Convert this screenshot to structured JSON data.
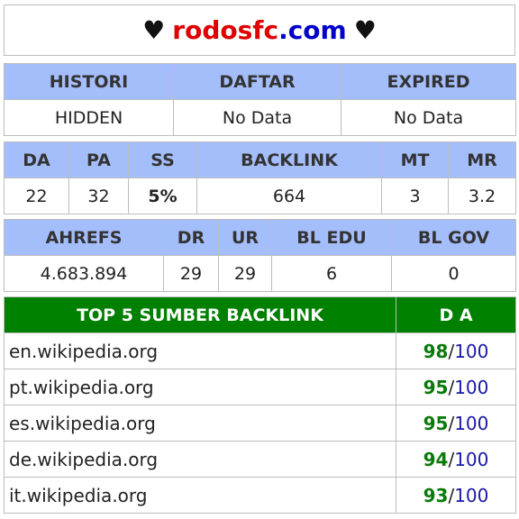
{
  "header": {
    "heart_left": "♥",
    "domain_red": "rodosfc",
    "domain_blue": ".com",
    "heart_right": "♥"
  },
  "status_table": {
    "headers": [
      "HISTORI",
      "DAFTAR",
      "EXPIRED"
    ],
    "values": [
      "HIDDEN",
      "No Data",
      "No Data"
    ]
  },
  "moz_table": {
    "headers": [
      "DA",
      "PA",
      "SS",
      "BACKLINK",
      "MT",
      "MR"
    ],
    "values": [
      "22",
      "32",
      "5%",
      "664",
      "3",
      "3.2"
    ]
  },
  "ahrefs_table": {
    "headers": [
      "AHREFS",
      "DR",
      "UR",
      "BL EDU",
      "BL GOV"
    ],
    "values": [
      "4.683.894",
      "29",
      "29",
      "6",
      "0"
    ]
  },
  "backlinks_table": {
    "title": "TOP 5 SUMBER BACKLINK",
    "da_header": "D A",
    "rows": [
      {
        "site": "en.wikipedia.org",
        "score": "98",
        "sep": "/",
        "max": "100"
      },
      {
        "site": "pt.wikipedia.org",
        "score": "95",
        "sep": "/",
        "max": "100"
      },
      {
        "site": "es.wikipedia.org",
        "score": "95",
        "sep": "/",
        "max": "100"
      },
      {
        "site": "de.wikipedia.org",
        "score": "94",
        "sep": "/",
        "max": "100"
      },
      {
        "site": "it.wikipedia.org",
        "score": "93",
        "sep": "/",
        "max": "100"
      }
    ]
  },
  "colors": {
    "header_bg": "#a4bdfb",
    "top_header_bg": "#008000",
    "domain_red": "#e00000",
    "domain_blue": "#0000cc",
    "score_green": "#0a7a0a"
  }
}
